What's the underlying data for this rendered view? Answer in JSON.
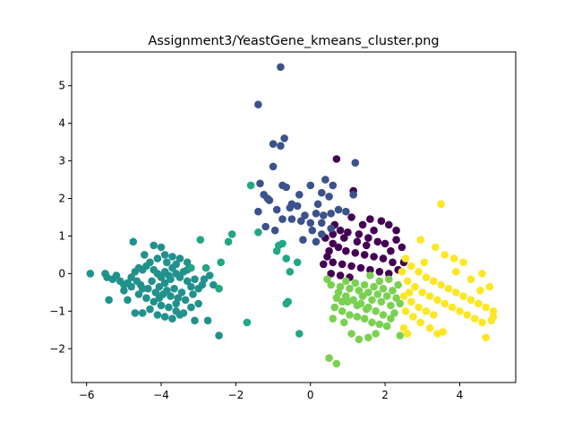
{
  "chart_data": {
    "type": "scatter",
    "title": "Assignment3/YeastGene_kmeans_cluster.png",
    "xlabel": "",
    "ylabel": "",
    "xlim": [
      -6.4,
      5.5
    ],
    "ylim": [
      -2.9,
      5.9
    ],
    "x_ticks": [
      -6,
      -4,
      -2,
      0,
      2,
      4
    ],
    "x_tick_labels": [
      "−6",
      "−4",
      "−2",
      "0",
      "2",
      "4"
    ],
    "y_ticks": [
      -2,
      -1,
      0,
      1,
      2,
      3,
      4,
      5
    ],
    "y_tick_labels": [
      "−2",
      "−1",
      "0",
      "1",
      "2",
      "3",
      "4",
      "5"
    ],
    "grid": false,
    "legend": false,
    "series": [
      {
        "color": "#440154",
        "points": [
          [
            0.7,
            3.05
          ],
          [
            1.15,
            2.2
          ],
          [
            1.6,
            1.45
          ],
          [
            1.9,
            1.4
          ],
          [
            2.1,
            1.3
          ],
          [
            2.3,
            1.15
          ],
          [
            2.3,
            0.9
          ],
          [
            2.45,
            0.7
          ],
          [
            2.5,
            0.3
          ],
          [
            1.1,
            1.5
          ],
          [
            0.65,
            1.3
          ],
          [
            0.8,
            1.15
          ],
          [
            1.0,
            1.1
          ],
          [
            1.3,
            1.05
          ],
          [
            1.55,
            0.95
          ],
          [
            1.8,
            0.85
          ],
          [
            2.0,
            0.8
          ],
          [
            2.15,
            0.6
          ],
          [
            0.4,
            0.95
          ],
          [
            0.6,
            0.8
          ],
          [
            0.75,
            0.7
          ],
          [
            0.95,
            0.6
          ],
          [
            1.2,
            0.55
          ],
          [
            1.45,
            0.5
          ],
          [
            1.7,
            0.45
          ],
          [
            1.95,
            0.4
          ],
          [
            2.2,
            0.3
          ],
          [
            0.45,
            0.45
          ],
          [
            0.6,
            0.3
          ],
          [
            0.85,
            0.25
          ],
          [
            1.1,
            0.2
          ],
          [
            1.35,
            0.15
          ],
          [
            1.6,
            0.1
          ],
          [
            1.85,
            0.05
          ],
          [
            2.1,
            0.0
          ],
          [
            0.55,
            0.0
          ],
          [
            0.8,
            -0.05
          ],
          [
            1.05,
            -0.1
          ],
          [
            0.35,
            0.25
          ],
          [
            0.5,
            0.6
          ],
          [
            1.25,
            0.85
          ],
          [
            1.5,
            0.75
          ],
          [
            2.35,
            0.1
          ],
          [
            0.9,
            0.95
          ],
          [
            1.7,
            1.15
          ],
          [
            1.4,
            1.3
          ],
          [
            0.6,
            1.05
          ]
        ]
      },
      {
        "color": "#3b528b",
        "points": [
          [
            -0.8,
            5.5
          ],
          [
            -1.4,
            4.5
          ],
          [
            -0.7,
            3.6
          ],
          [
            -1.0,
            3.45
          ],
          [
            -0.8,
            3.4
          ],
          [
            -1.0,
            2.85
          ],
          [
            1.2,
            2.95
          ],
          [
            -1.35,
            2.4
          ],
          [
            -1.25,
            2.1
          ],
          [
            -1.15,
            2.0
          ],
          [
            -0.75,
            2.35
          ],
          [
            -0.65,
            2.3
          ],
          [
            -0.3,
            2.1
          ],
          [
            0.0,
            2.35
          ],
          [
            0.4,
            2.5
          ],
          [
            0.6,
            2.35
          ],
          [
            -1.1,
            1.95
          ],
          [
            0.3,
            2.15
          ],
          [
            -0.5,
            1.85
          ],
          [
            -0.35,
            1.8
          ],
          [
            0.2,
            1.85
          ],
          [
            0.5,
            2.05
          ],
          [
            1.15,
            2.1
          ],
          [
            -0.9,
            1.7
          ],
          [
            -1.4,
            1.65
          ],
          [
            -0.15,
            1.55
          ],
          [
            0.15,
            1.6
          ],
          [
            0.35,
            1.55
          ],
          [
            0.55,
            1.6
          ],
          [
            0.75,
            1.7
          ],
          [
            0.95,
            1.65
          ],
          [
            -0.75,
            1.45
          ],
          [
            -0.5,
            1.45
          ],
          [
            -0.25,
            1.4
          ],
          [
            0.0,
            1.35
          ],
          [
            0.3,
            1.35
          ],
          [
            0.55,
            1.2
          ],
          [
            -1.2,
            1.25
          ],
          [
            -0.95,
            1.15
          ],
          [
            0.05,
            1.15
          ],
          [
            0.3,
            1.05
          ],
          [
            -0.2,
            0.9
          ],
          [
            0.15,
            0.85
          ],
          [
            -0.55,
            1.75
          ]
        ]
      },
      {
        "color": "#21918c",
        "points": [
          [
            -5.9,
            0.0
          ],
          [
            -5.5,
            0.0
          ],
          [
            -5.45,
            -0.1
          ],
          [
            -5.3,
            -0.15
          ],
          [
            -5.2,
            -0.05
          ],
          [
            -5.1,
            -0.2
          ],
          [
            -5.0,
            -0.3
          ],
          [
            -4.9,
            -0.25
          ],
          [
            -4.8,
            -0.1
          ],
          [
            -4.7,
            0.05
          ],
          [
            -4.6,
            0.15
          ],
          [
            -4.5,
            0.1
          ],
          [
            -4.4,
            0.2
          ],
          [
            -4.3,
            0.3
          ],
          [
            -4.2,
            0.1
          ],
          [
            -4.1,
            0.0
          ],
          [
            -4.0,
            -0.1
          ],
          [
            -3.9,
            0.05
          ],
          [
            -3.8,
            -0.05
          ],
          [
            -3.7,
            0.15
          ],
          [
            -3.6,
            0.0
          ],
          [
            -3.5,
            -0.1
          ],
          [
            -3.4,
            0.05
          ],
          [
            -3.3,
            -0.2
          ],
          [
            -3.2,
            -0.35
          ],
          [
            -3.1,
            -0.15
          ],
          [
            -3.0,
            -0.4
          ],
          [
            -2.9,
            -0.3
          ],
          [
            -4.75,
            0.85
          ],
          [
            -4.2,
            0.75
          ],
          [
            -4.0,
            0.7
          ],
          [
            -3.9,
            0.5
          ],
          [
            -3.7,
            0.45
          ],
          [
            -3.5,
            0.4
          ],
          [
            -3.3,
            0.3
          ],
          [
            -4.45,
            0.5
          ],
          [
            -4.1,
            0.4
          ],
          [
            -3.85,
            0.3
          ],
          [
            -3.6,
            0.25
          ],
          [
            -3.3,
            0.1
          ],
          [
            -2.85,
            -0.15
          ],
          [
            -2.7,
            -0.05
          ],
          [
            -2.6,
            -0.3
          ],
          [
            -4.9,
            -0.7
          ],
          [
            -4.6,
            -0.55
          ],
          [
            -4.4,
            -0.65
          ],
          [
            -4.2,
            -0.75
          ],
          [
            -4.0,
            -0.85
          ],
          [
            -3.8,
            -0.9
          ],
          [
            -3.6,
            -1.0
          ],
          [
            -3.4,
            -1.05
          ],
          [
            -3.2,
            -0.9
          ],
          [
            -3.0,
            -0.8
          ],
          [
            -4.7,
            -1.05
          ],
          [
            -4.5,
            -1.05
          ],
          [
            -4.3,
            -0.95
          ],
          [
            -4.1,
            -1.1
          ],
          [
            -3.9,
            -1.15
          ],
          [
            -3.7,
            -1.2
          ],
          [
            -3.5,
            -1.1
          ],
          [
            -3.1,
            -1.25
          ],
          [
            -2.75,
            -1.25
          ],
          [
            -2.45,
            -1.65
          ],
          [
            -5.0,
            -0.45
          ],
          [
            -4.8,
            -0.35
          ],
          [
            -4.55,
            -0.3
          ],
          [
            -4.35,
            -0.4
          ],
          [
            -4.15,
            -0.5
          ],
          [
            -3.95,
            -0.55
          ],
          [
            -3.75,
            -0.6
          ],
          [
            -3.55,
            -0.65
          ],
          [
            -3.35,
            -0.7
          ],
          [
            -3.15,
            -0.55
          ],
          [
            -5.4,
            -0.7
          ],
          [
            -4.65,
            -0.2
          ],
          [
            -4.05,
            -0.35
          ],
          [
            -3.65,
            -0.4
          ],
          [
            -3.45,
            -0.5
          ],
          [
            -3.9,
            -0.25
          ],
          [
            -4.25,
            -0.2
          ],
          [
            -3.75,
            -0.15
          ],
          [
            -4.5,
            -0.4
          ],
          [
            -3.6,
            -0.8
          ],
          [
            -4.05,
            -0.65
          ],
          [
            -3.85,
            -0.45
          ]
        ]
      },
      {
        "color": "#21a784",
        "points": [
          [
            -1.6,
            2.35
          ],
          [
            -1.4,
            1.1
          ],
          [
            -2.1,
            1.05
          ],
          [
            -2.2,
            0.85
          ],
          [
            -2.95,
            0.9
          ],
          [
            -2.4,
            0.3
          ],
          [
            -2.45,
            -0.4
          ],
          [
            -2.8,
            0.15
          ],
          [
            -0.9,
            0.6
          ],
          [
            -0.75,
            0.8
          ],
          [
            -0.85,
            0.75
          ],
          [
            -0.65,
            0.4
          ],
          [
            -0.55,
            0.05
          ],
          [
            -0.35,
            0.3
          ],
          [
            -0.65,
            -0.8
          ],
          [
            -0.6,
            -0.75
          ],
          [
            -1.7,
            -1.3
          ],
          [
            -0.3,
            -1.6
          ],
          [
            -3.2,
            0.15
          ]
        ]
      },
      {
        "color": "#7ad151",
        "points": [
          [
            0.55,
            -0.3
          ],
          [
            0.75,
            -0.5
          ],
          [
            0.95,
            -0.6
          ],
          [
            1.15,
            -0.7
          ],
          [
            1.35,
            -0.8
          ],
          [
            1.55,
            -0.9
          ],
          [
            1.75,
            -1.0
          ],
          [
            1.95,
            -1.1
          ],
          [
            2.15,
            -1.2
          ],
          [
            0.65,
            -0.9
          ],
          [
            0.85,
            -1.0
          ],
          [
            1.05,
            -1.1
          ],
          [
            1.25,
            -1.15
          ],
          [
            1.45,
            -1.2
          ],
          [
            1.65,
            -1.3
          ],
          [
            1.85,
            -1.35
          ],
          [
            2.05,
            -1.4
          ],
          [
            0.6,
            -1.2
          ],
          [
            0.9,
            -1.3
          ],
          [
            1.1,
            -1.6
          ],
          [
            1.3,
            -1.75
          ],
          [
            1.55,
            -1.7
          ],
          [
            1.75,
            -1.6
          ],
          [
            0.5,
            -2.25
          ],
          [
            0.7,
            -2.4
          ],
          [
            0.95,
            -0.2
          ],
          [
            1.2,
            -0.25
          ],
          [
            1.45,
            -0.3
          ],
          [
            1.7,
            -0.35
          ],
          [
            1.95,
            -0.4
          ],
          [
            2.2,
            -0.45
          ],
          [
            0.8,
            -0.35
          ],
          [
            1.05,
            -0.4
          ],
          [
            1.3,
            -0.45
          ],
          [
            1.55,
            -0.5
          ],
          [
            1.8,
            -0.55
          ],
          [
            2.05,
            -0.6
          ],
          [
            2.3,
            -0.65
          ],
          [
            0.7,
            -0.65
          ],
          [
            1.0,
            -0.75
          ],
          [
            1.25,
            -0.85
          ],
          [
            1.5,
            -0.95
          ],
          [
            2.25,
            -1.05
          ],
          [
            2.4,
            -0.8
          ],
          [
            2.35,
            -0.3
          ],
          [
            2.1,
            -0.15
          ],
          [
            1.85,
            -0.2
          ],
          [
            1.6,
            -0.05
          ],
          [
            0.45,
            -0.15
          ],
          [
            1.4,
            -0.6
          ],
          [
            1.65,
            -0.7
          ],
          [
            1.9,
            -0.75
          ],
          [
            2.15,
            -0.85
          ],
          [
            2.4,
            -1.65
          ],
          [
            0.85,
            -0.75
          ]
        ]
      },
      {
        "color": "#fde725",
        "points": [
          [
            3.5,
            1.85
          ],
          [
            2.95,
            0.9
          ],
          [
            3.35,
            0.7
          ],
          [
            3.6,
            0.5
          ],
          [
            3.85,
            0.4
          ],
          [
            4.1,
            0.3
          ],
          [
            2.55,
            0.4
          ],
          [
            2.7,
            0.2
          ],
          [
            2.9,
            0.05
          ],
          [
            3.1,
            -0.1
          ],
          [
            3.3,
            -0.2
          ],
          [
            3.5,
            -0.3
          ],
          [
            3.7,
            -0.4
          ],
          [
            3.9,
            -0.5
          ],
          [
            4.1,
            -0.6
          ],
          [
            4.3,
            -0.7
          ],
          [
            4.5,
            -0.8
          ],
          [
            4.7,
            -0.9
          ],
          [
            4.9,
            -1.0
          ],
          [
            2.6,
            -0.2
          ],
          [
            2.8,
            -0.35
          ],
          [
            3.0,
            -0.5
          ],
          [
            3.2,
            -0.6
          ],
          [
            3.4,
            -0.7
          ],
          [
            3.6,
            -0.8
          ],
          [
            3.8,
            -0.9
          ],
          [
            4.0,
            -1.0
          ],
          [
            4.2,
            -1.1
          ],
          [
            4.4,
            -1.2
          ],
          [
            4.6,
            -1.3
          ],
          [
            2.5,
            -0.6
          ],
          [
            2.7,
            -0.75
          ],
          [
            2.9,
            -0.9
          ],
          [
            3.1,
            -1.0
          ],
          [
            3.3,
            -1.1
          ],
          [
            2.55,
            -1.0
          ],
          [
            2.75,
            -1.15
          ],
          [
            2.95,
            -1.3
          ],
          [
            3.2,
            -1.45
          ],
          [
            3.4,
            -1.6
          ],
          [
            3.55,
            -1.55
          ],
          [
            2.6,
            -1.6
          ],
          [
            4.7,
            -1.7
          ],
          [
            4.85,
            -1.25
          ],
          [
            4.9,
            -1.15
          ],
          [
            4.6,
            0.0
          ],
          [
            4.8,
            -0.35
          ],
          [
            4.55,
            -0.45
          ],
          [
            3.9,
            0.05
          ],
          [
            4.3,
            -0.15
          ],
          [
            2.45,
            0.05
          ],
          [
            2.65,
            -0.5
          ],
          [
            3.05,
            0.3
          ],
          [
            2.5,
            -1.45
          ]
        ]
      }
    ]
  }
}
